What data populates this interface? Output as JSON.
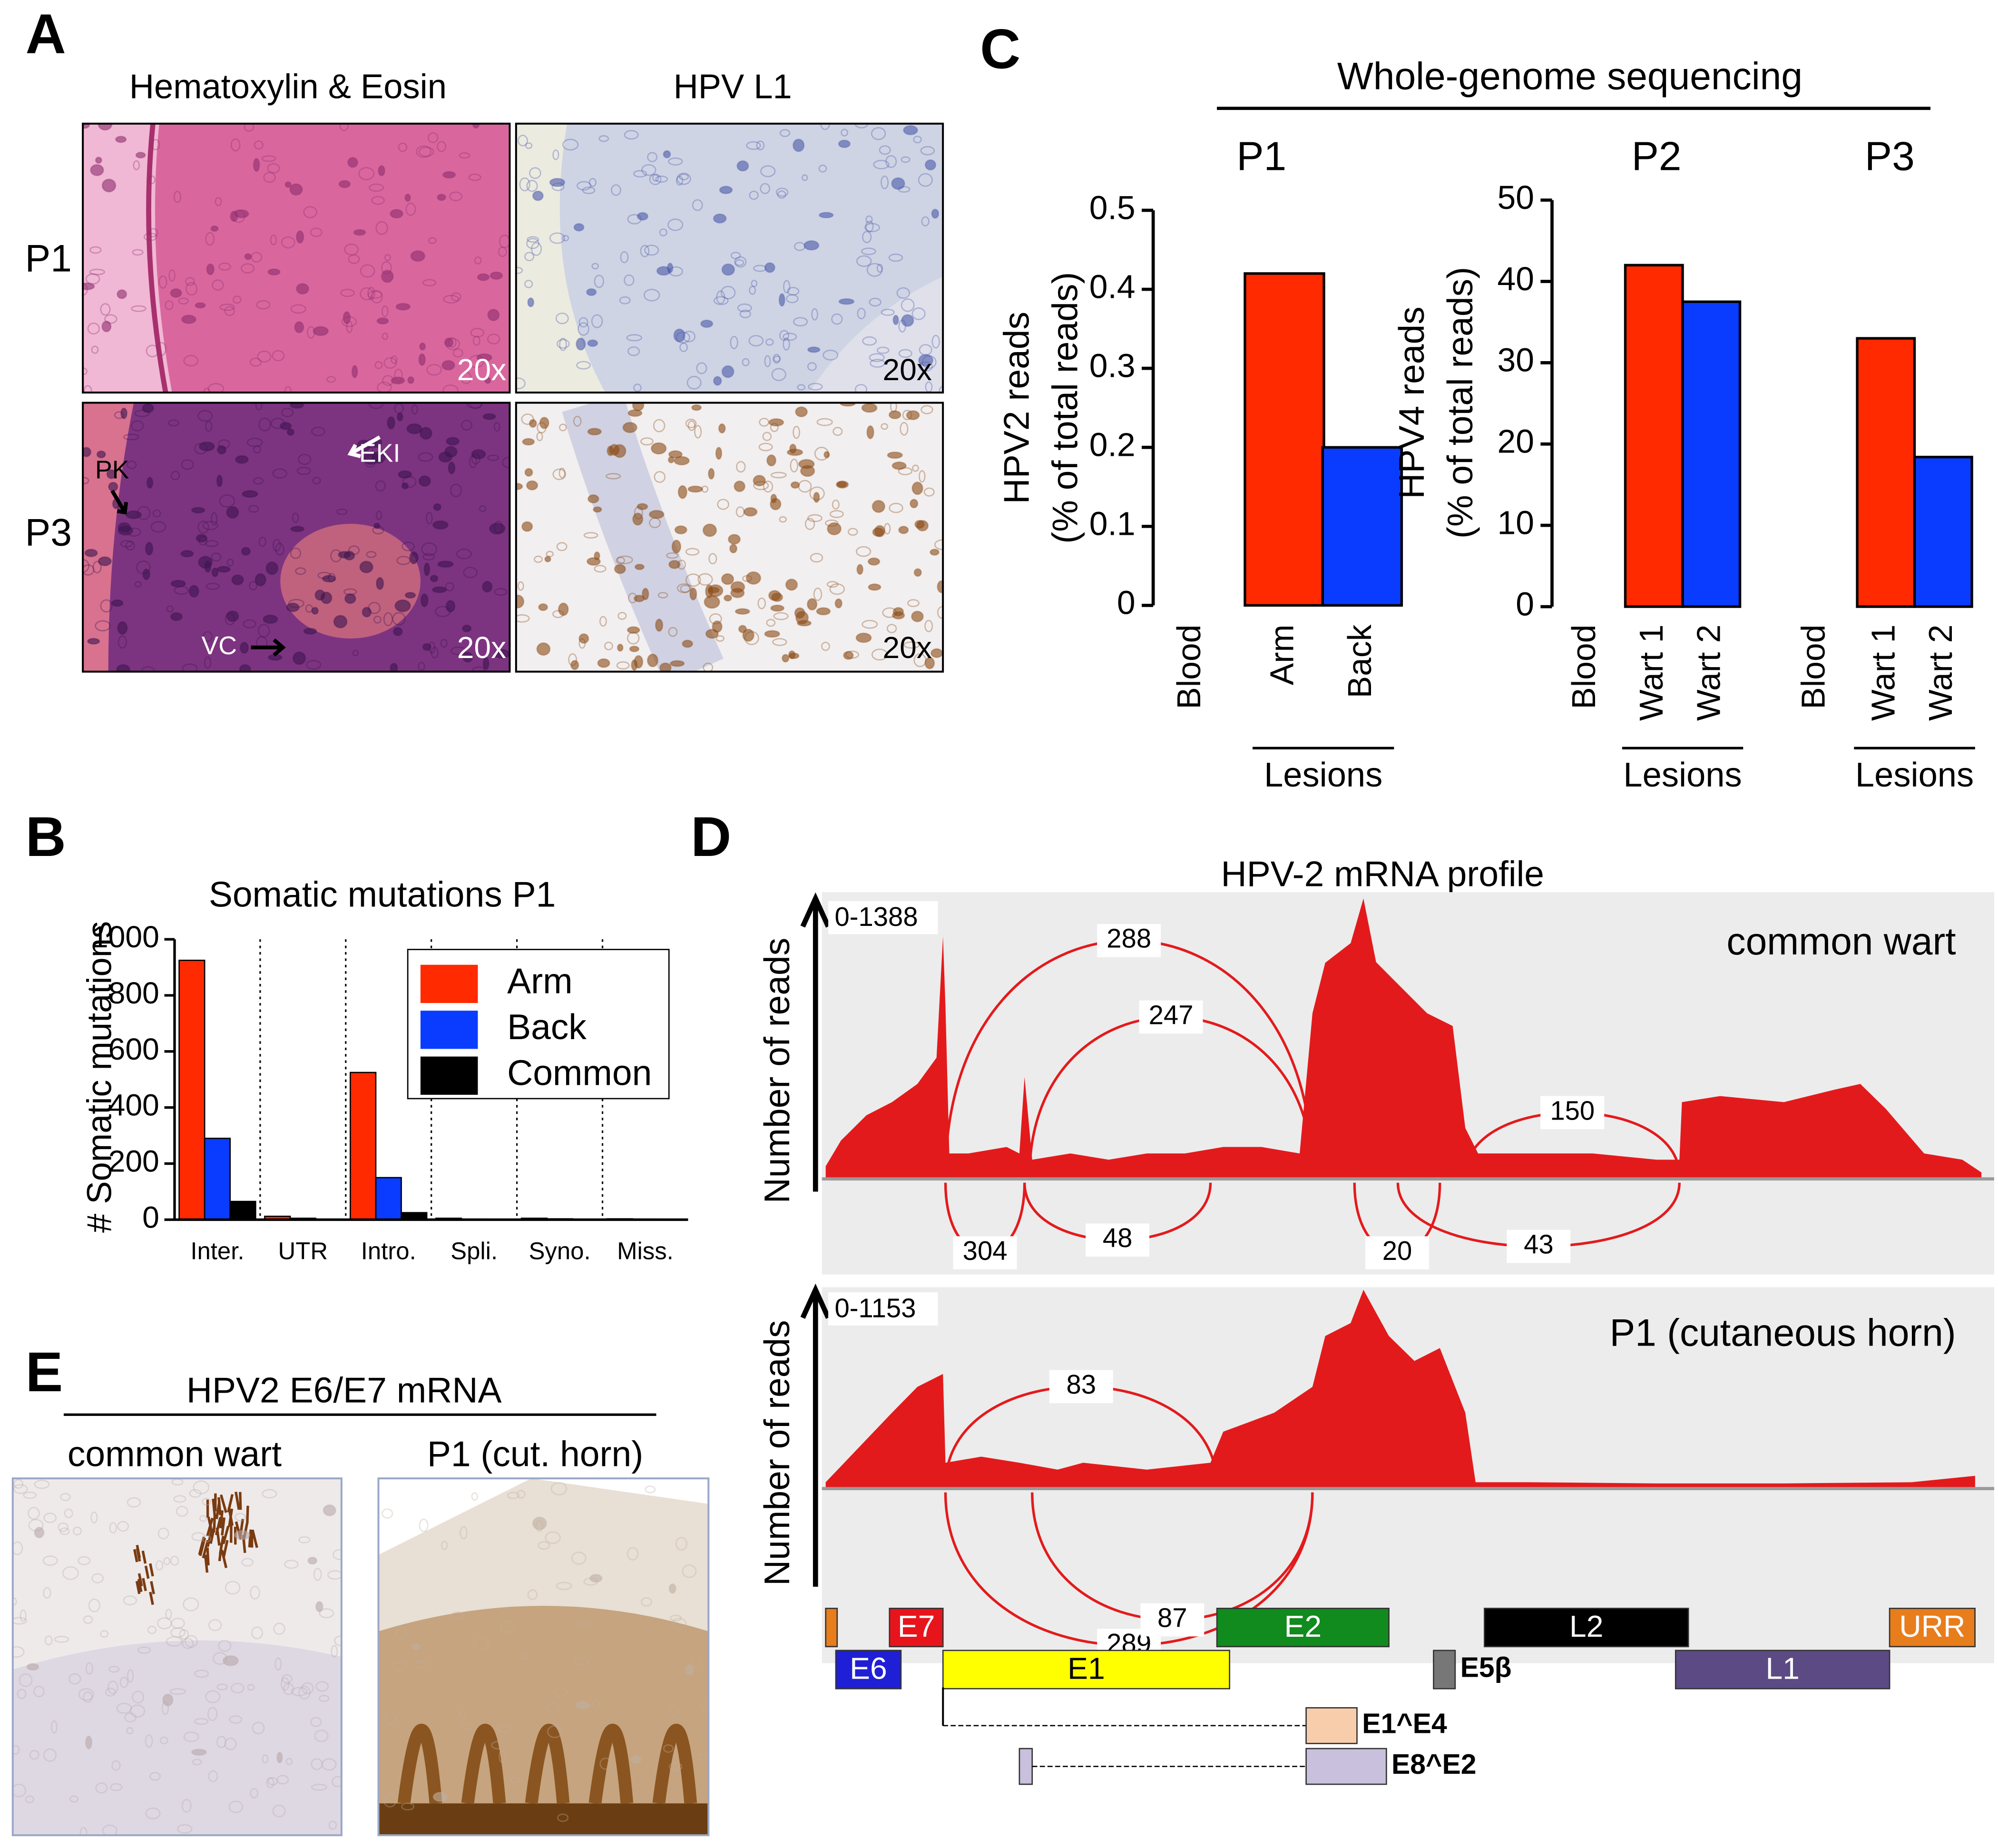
{
  "panels": {
    "A": {
      "label": "A",
      "columns": [
        "Hematoxylin & Eosin",
        "HPV L1"
      ],
      "rows": [
        "P1",
        "P3"
      ],
      "magnifications": [
        "20x",
        "20x",
        "20x",
        "20x"
      ],
      "annotations": [
        "PK",
        "EKI",
        "VC"
      ]
    },
    "B": {
      "label": "B"
    },
    "C": {
      "label": "C",
      "header": "Whole-genome sequencing",
      "patients": [
        "P1",
        "P2",
        "P3"
      ]
    },
    "D": {
      "label": "D",
      "title": "HPV-2 mRNA profile"
    },
    "E": {
      "label": "E",
      "title": "HPV2 E6/E7 mRNA",
      "columns": [
        "common wart",
        "P1 (cut. horn)"
      ]
    }
  },
  "chart_data": [
    {
      "type": "bar",
      "ylabel": [
        "HPV2 reads",
        "(% of total reads)"
      ],
      "categories": [
        "Blood",
        "Arm",
        "Back"
      ],
      "values": [
        0,
        0.42,
        0.2
      ],
      "colors": [
        "#ff2a00",
        "#ff2a00",
        "#0a3cff"
      ],
      "ylim": [
        0,
        0.5
      ],
      "yticks": [
        0,
        0.1,
        0.2,
        0.3,
        0.4,
        0.5
      ],
      "groups": [
        {
          "label": "Lesions",
          "categories": [
            1,
            2
          ]
        }
      ]
    },
    {
      "type": "bar",
      "ylabel": [
        "HPV4 reads",
        "(% of total reads)"
      ],
      "categories": [
        "Blood",
        "Wart 1",
        "Wart 2",
        "Blood",
        "Wart 1",
        "Wart 2"
      ],
      "values": [
        0,
        42,
        37.5,
        0,
        33,
        18.4
      ],
      "colors": [
        "#ff2a00",
        "#ff2a00",
        "#0a3cff",
        "#ff2a00",
        "#ff2a00",
        "#0a3cff"
      ],
      "ylim": [
        0,
        50
      ],
      "yticks": [
        0,
        10,
        20,
        30,
        40,
        50
      ],
      "groups": [
        {
          "label": "Lesions",
          "categories": [
            1,
            2
          ]
        },
        {
          "label": "Lesions",
          "categories": [
            4,
            5
          ]
        }
      ]
    },
    {
      "type": "grouped_bar",
      "title": "Somatic mutations P1",
      "ylabel": "# Somatic mutations",
      "categories": [
        "Inter.",
        "UTR",
        "Intro.",
        "Spli.",
        "Syno.",
        "Miss."
      ],
      "series": [
        {
          "name": "Arm",
          "color": "#ff2a00",
          "values": [
            925,
            12,
            525,
            5,
            5,
            3
          ]
        },
        {
          "name": "Back",
          "color": "#0a3cff",
          "values": [
            290,
            5,
            150,
            2,
            3,
            2
          ]
        },
        {
          "name": "Common",
          "color": "#000000",
          "values": [
            65,
            2,
            25,
            1,
            1,
            1
          ]
        }
      ],
      "ylim": [
        0,
        1000
      ],
      "yticks": [
        0,
        200,
        400,
        600,
        800,
        1000
      ],
      "separators": true,
      "legend": "top-right"
    },
    {
      "type": "coverage",
      "label": "common wart",
      "range_label": "0-1388",
      "ylabel": "Number of reads",
      "color": "#e31a1c",
      "x": [
        0,
        104,
        277,
        451,
        624,
        754,
        798,
        815,
        841,
        971,
        1231,
        1318,
        1353,
        1405,
        1665,
        1925,
        2185,
        2445,
        2705,
        2965,
        3225,
        3312,
        3399,
        3572,
        3659,
        3745,
        3919,
        4092,
        4266,
        4352,
        4439,
        4786,
        5219,
        5653,
        5809,
        5826,
        6086,
        6520,
        6867,
        7040,
        7213,
        7474,
        7734,
        7864
      ],
      "values": [
        63,
        190,
        315,
        380,
        470,
        600,
        1200,
        850,
        126,
        126,
        158,
        126,
        505,
        95,
        126,
        95,
        126,
        126,
        158,
        158,
        126,
        820,
        1070,
        1167,
        1388,
        1073,
        946,
        820,
        757,
        252,
        126,
        126,
        126,
        95,
        95,
        380,
        410,
        380,
        442,
        470,
        347,
        126,
        95,
        32
      ],
      "xlim": [
        0,
        7864
      ],
      "ylim": [
        0,
        1388
      ],
      "junctions": [
        {
          "start": 815,
          "end": 3312,
          "value": 288,
          "side": "above"
        },
        {
          "start": 1387,
          "end": 3312,
          "value": 247,
          "side": "above"
        },
        {
          "start": 4352,
          "end": 5809,
          "value": 150,
          "side": "above"
        },
        {
          "start": 815,
          "end": 1353,
          "value": 304,
          "side": "below"
        },
        {
          "start": 1353,
          "end": 2618,
          "value": 48,
          "side": "below"
        },
        {
          "start": 3598,
          "end": 4179,
          "value": 20,
          "side": "below"
        },
        {
          "start": 3893,
          "end": 5809,
          "value": 43,
          "side": "below"
        }
      ]
    },
    {
      "type": "coverage",
      "label": "P1 (cutaneous horn)",
      "range_label": "0-1153",
      "ylabel": "Number of reads",
      "color": "#e31a1c",
      "x": [
        0,
        451,
        624,
        798,
        815,
        1058,
        1318,
        1578,
        1752,
        2185,
        2618,
        2705,
        3052,
        3312,
        3399,
        3572,
        3659,
        3832,
        4006,
        4179,
        4352,
        4422,
        4786,
        5653,
        6520,
        7387,
        7821
      ],
      "values": [
        37,
        440,
        590,
        665,
        150,
        185,
        150,
        110,
        150,
        110,
        150,
        330,
        440,
        590,
        885,
        960,
        1153,
        885,
        740,
        815,
        440,
        37,
        37,
        30,
        30,
        37,
        74
      ],
      "xlim": [
        0,
        7864
      ],
      "ylim": [
        0,
        1153
      ],
      "junctions": [
        {
          "start": 815,
          "end": 2662,
          "value": 83,
          "side": "above"
        },
        {
          "start": 815,
          "end": 3312,
          "value": 289,
          "side": "below"
        },
        {
          "start": 1405,
          "end": 3312,
          "value": 87,
          "side": "below"
        }
      ]
    }
  ],
  "gene_map": [
    {
      "label": null,
      "segments": [
        [
          0,
          78
        ]
      ],
      "row": 0,
      "color": "#e87d1c"
    },
    {
      "label": "E7",
      "segments": [
        [
          434,
          798
        ]
      ],
      "row": 0,
      "color": "#e8141c",
      "text_color": "#ffffff"
    },
    {
      "label": "E2",
      "segments": [
        [
          2662,
          3832
        ]
      ],
      "row": 0,
      "color": "#118a1e",
      "text_color": "#ffffff"
    },
    {
      "label": "L2",
      "segments": [
        [
          4482,
          5870
        ]
      ],
      "row": 0,
      "color": "#000000",
      "text_color": "#ffffff"
    },
    {
      "label": "URR",
      "segments": [
        [
          7239,
          7820
        ]
      ],
      "row": 0,
      "color": "#e87d1c",
      "text_color": "#ffffff"
    },
    {
      "label": "E6",
      "segments": [
        [
          69,
          512
        ]
      ],
      "row": 1,
      "color": "#1f1fd6",
      "text_color": "#ffffff"
    },
    {
      "label": "E1",
      "segments": [
        [
          798,
          2748
        ]
      ],
      "row": 1,
      "color": "#ffff00",
      "text_color": "#000000"
    },
    {
      "label": "E5β",
      "segments": [
        [
          4136,
          4283
        ]
      ],
      "row": 1,
      "color": "#777777",
      "label_outside": true
    },
    {
      "label": "L1",
      "segments": [
        [
          5783,
          7239
        ]
      ],
      "row": 1,
      "color": "#5c4a85",
      "text_color": "#ffffff"
    },
    {
      "label": "E1^E4",
      "segments": [
        [
          798,
          798
        ],
        [
          3269,
          3615
        ]
      ],
      "row": 2,
      "color": "#f8cdab",
      "label_outside": true
    },
    {
      "label": "E8^E2",
      "segments": [
        [
          1318,
          1405
        ],
        [
          3269,
          3815
        ]
      ],
      "row": 3,
      "color": "#c8c0dc",
      "label_outside": true
    }
  ]
}
